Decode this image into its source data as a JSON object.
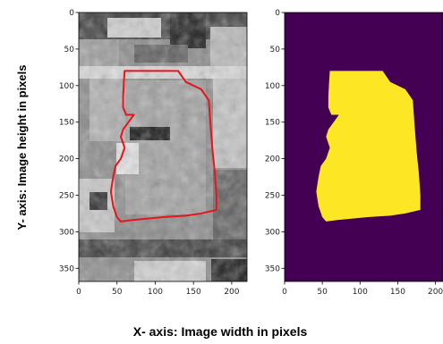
{
  "chart_data": [
    {
      "type": "image",
      "panel": "grayscale-image",
      "xlim": [
        0,
        220
      ],
      "ylim": [
        368,
        0
      ],
      "x_ticks": [
        0,
        50,
        100,
        150,
        200
      ],
      "y_ticks": [
        0,
        50,
        100,
        150,
        200,
        250,
        300,
        350
      ],
      "contour_color": "#e8141c",
      "contour": [
        [
          60,
          80
        ],
        [
          130,
          80
        ],
        [
          140,
          95
        ],
        [
          160,
          105
        ],
        [
          170,
          120
        ],
        [
          172,
          150
        ],
        [
          175,
          190
        ],
        [
          178,
          220
        ],
        [
          180,
          250
        ],
        [
          180,
          270
        ],
        [
          160,
          275
        ],
        [
          140,
          278
        ],
        [
          110,
          280
        ],
        [
          90,
          282
        ],
        [
          70,
          284
        ],
        [
          55,
          286
        ],
        [
          50,
          280
        ],
        [
          45,
          265
        ],
        [
          42,
          245
        ],
        [
          45,
          225
        ],
        [
          48,
          210
        ],
        [
          55,
          200
        ],
        [
          60,
          185
        ],
        [
          55,
          170
        ],
        [
          58,
          160
        ],
        [
          65,
          150
        ],
        [
          72,
          140
        ],
        [
          62,
          140
        ],
        [
          58,
          130
        ],
        [
          58,
          115
        ],
        [
          59,
          95
        ]
      ]
    },
    {
      "type": "mask",
      "panel": "segmentation-mask",
      "xlim": [
        0,
        210
      ],
      "ylim": [
        368,
        0
      ],
      "x_ticks": [
        0,
        50,
        100,
        150,
        200
      ],
      "y_ticks": [
        0,
        50,
        100,
        150,
        200,
        250,
        300,
        350
      ],
      "background_color": "#440154",
      "mask_color": "#fde725",
      "mask": [
        [
          60,
          80
        ],
        [
          130,
          80
        ],
        [
          140,
          95
        ],
        [
          160,
          105
        ],
        [
          170,
          120
        ],
        [
          172,
          150
        ],
        [
          175,
          190
        ],
        [
          178,
          220
        ],
        [
          180,
          250
        ],
        [
          180,
          270
        ],
        [
          160,
          275
        ],
        [
          140,
          278
        ],
        [
          110,
          280
        ],
        [
          90,
          282
        ],
        [
          70,
          284
        ],
        [
          55,
          286
        ],
        [
          50,
          280
        ],
        [
          45,
          265
        ],
        [
          42,
          245
        ],
        [
          45,
          225
        ],
        [
          48,
          210
        ],
        [
          55,
          200
        ],
        [
          60,
          185
        ],
        [
          55,
          170
        ],
        [
          58,
          160
        ],
        [
          65,
          150
        ],
        [
          72,
          140
        ],
        [
          62,
          140
        ],
        [
          58,
          130
        ],
        [
          58,
          115
        ],
        [
          59,
          95
        ]
      ]
    }
  ],
  "xlabel": "X- axis: Image width in pixels",
  "ylabel": "Y- axis: Image height in pixels"
}
